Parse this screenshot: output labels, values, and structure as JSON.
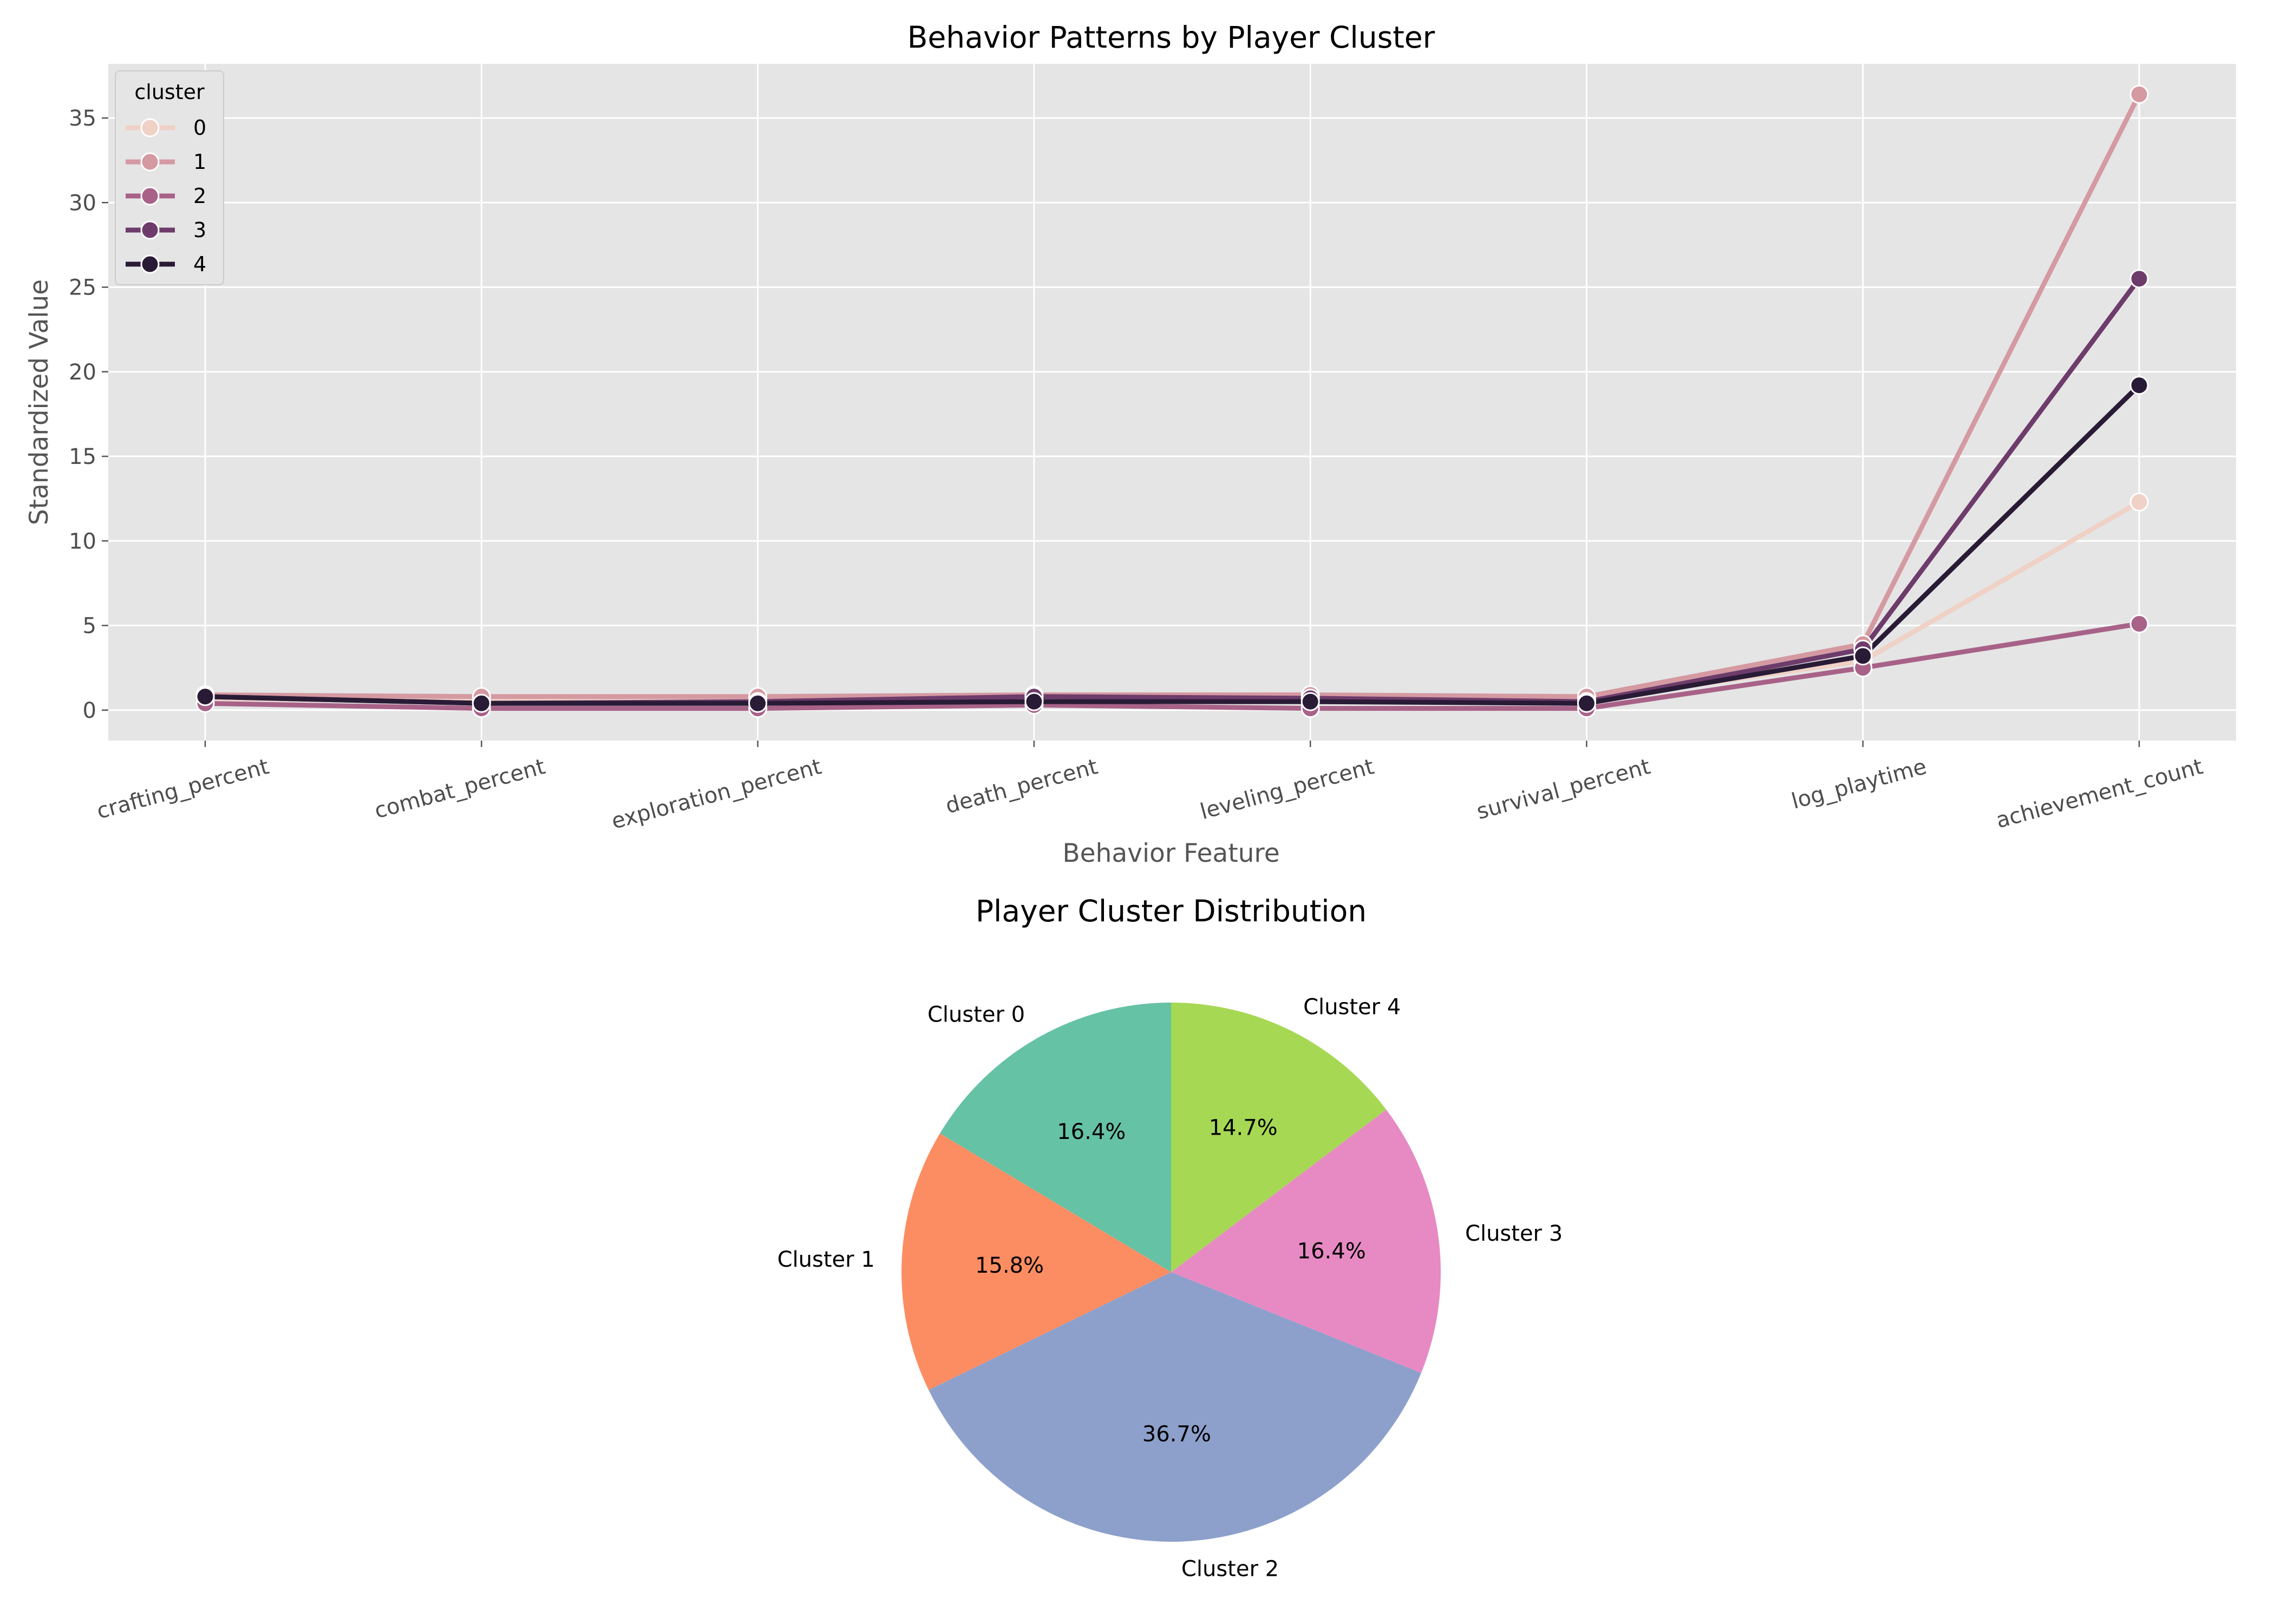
{
  "chart_data": [
    {
      "type": "line",
      "title": "Behavior Patterns by Player Cluster",
      "xlabel": "Behavior Feature",
      "ylabel": "Standardized Value",
      "categories": [
        "crafting_percent",
        "combat_percent",
        "exploration_percent",
        "death_percent",
        "leveling_percent",
        "survival_percent",
        "log_playtime",
        "achievement_count"
      ],
      "yticks": [
        0,
        5,
        10,
        15,
        20,
        25,
        30,
        35
      ],
      "ylim": [
        -1.8,
        38.2
      ],
      "grid": true,
      "legend": {
        "title": "cluster",
        "placement": "top-left"
      },
      "series": [
        {
          "name": "0",
          "color": "#efd1c6",
          "values": [
            0.7,
            0.5,
            0.7,
            0.6,
            0.7,
            0.6,
            2.9,
            12.3
          ]
        },
        {
          "name": "1",
          "color": "#d599a1",
          "values": [
            0.9,
            0.8,
            0.8,
            0.9,
            0.9,
            0.8,
            3.9,
            36.4
          ]
        },
        {
          "name": "2",
          "color": "#a86288",
          "values": [
            0.4,
            0.1,
            0.1,
            0.3,
            0.1,
            0.1,
            2.5,
            5.1
          ]
        },
        {
          "name": "3",
          "color": "#6e3c6b",
          "values": [
            0.8,
            0.4,
            0.5,
            0.8,
            0.7,
            0.5,
            3.6,
            25.5
          ]
        },
        {
          "name": "4",
          "color": "#291b36",
          "values": [
            0.8,
            0.4,
            0.4,
            0.5,
            0.5,
            0.4,
            3.2,
            19.2
          ]
        }
      ]
    },
    {
      "type": "pie",
      "title": "Player Cluster Distribution",
      "slices": [
        {
          "label": "Cluster 0",
          "value": 16.4,
          "pct_label": "16.4%",
          "color": "#66c2a5"
        },
        {
          "label": "Cluster 1",
          "value": 15.8,
          "pct_label": "15.8%",
          "color": "#fc8d62"
        },
        {
          "label": "Cluster 2",
          "value": 36.7,
          "pct_label": "36.7%",
          "color": "#8da0cb"
        },
        {
          "label": "Cluster 3",
          "value": 16.4,
          "pct_label": "16.4%",
          "color": "#e78ac3"
        },
        {
          "label": "Cluster 4",
          "value": 14.7,
          "pct_label": "14.7%",
          "color": "#a6d854"
        }
      ]
    }
  ]
}
